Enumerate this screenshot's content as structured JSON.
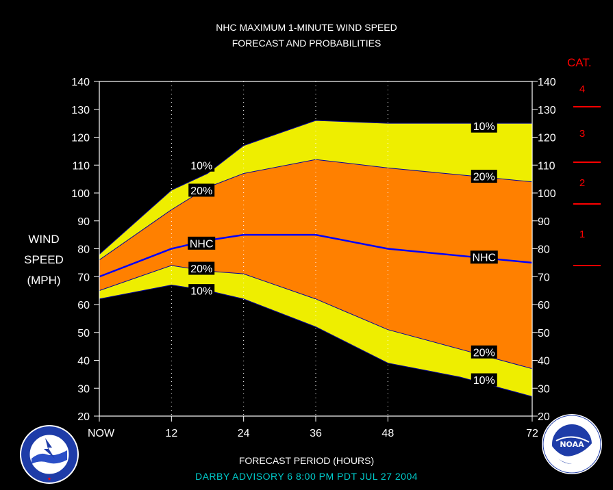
{
  "title_line1": "NHC MAXIMUM 1-MINUTE WIND SPEED",
  "title_line2": "FORECAST AND PROBABILITIES",
  "ylabel_lines": [
    "WIND",
    "SPEED",
    "(MPH)"
  ],
  "xlabel": "FORECAST PERIOD (HOURS)",
  "advisory": "DARBY   ADVISORY  6  8:00  PM  PDT  JUL  27  2004",
  "cat": {
    "title": "CAT.",
    "labels": [
      "4",
      "3",
      "2",
      "1"
    ],
    "color": "#ff0000"
  },
  "colors": {
    "band10": "#eeee00",
    "band20": "#ff8000",
    "nhc_line": "#0000ff",
    "advisory": "#00cccc",
    "grid": "#ffffff"
  },
  "logos": [
    "nws-logo",
    "noaa-logo"
  ],
  "chart_data": {
    "type": "area",
    "x": [
      0,
      12,
      18,
      24,
      36,
      48,
      60,
      72
    ],
    "x_tick_values": [
      0,
      12,
      24,
      36,
      48,
      72
    ],
    "x_tick_labels": [
      "NOW",
      "12",
      "24",
      "36",
      "48",
      "72"
    ],
    "xlim": [
      0,
      72
    ],
    "ylim": [
      20,
      140
    ],
    "y_ticks": [
      20,
      30,
      40,
      50,
      60,
      70,
      80,
      90,
      100,
      110,
      120,
      130,
      140
    ],
    "cat_thresholds": [
      74,
      96,
      111,
      131
    ],
    "series": [
      {
        "name": "10%",
        "values": [
          78,
          101,
          107,
          117,
          126,
          125,
          125,
          125
        ]
      },
      {
        "name": "20%",
        "values": [
          76,
          94,
          102,
          107,
          112,
          109,
          106.5,
          104
        ]
      },
      {
        "name": "NHC",
        "values": [
          70,
          80,
          83,
          85,
          85,
          80,
          77.5,
          75
        ]
      },
      {
        "name": "20%",
        "values": [
          65,
          74,
          72,
          71,
          62,
          51,
          44,
          37
        ]
      },
      {
        "name": "10%",
        "values": [
          62,
          67,
          65,
          62,
          52,
          39,
          34,
          27
        ]
      }
    ],
    "curve_labels": [
      {
        "text": "10%",
        "x": 17,
        "y": 110
      },
      {
        "text": "20%",
        "x": 17,
        "y": 101
      },
      {
        "text": "NHC",
        "x": 17,
        "y": 82
      },
      {
        "text": "20%",
        "x": 17,
        "y": 73
      },
      {
        "text": "10%",
        "x": 17,
        "y": 65
      },
      {
        "text": "10%",
        "x": 64,
        "y": 124
      },
      {
        "text": "20%",
        "x": 64,
        "y": 106
      },
      {
        "text": "NHC",
        "x": 64,
        "y": 77
      },
      {
        "text": "20%",
        "x": 64,
        "y": 43
      },
      {
        "text": "10%",
        "x": 64,
        "y": 33
      }
    ]
  }
}
